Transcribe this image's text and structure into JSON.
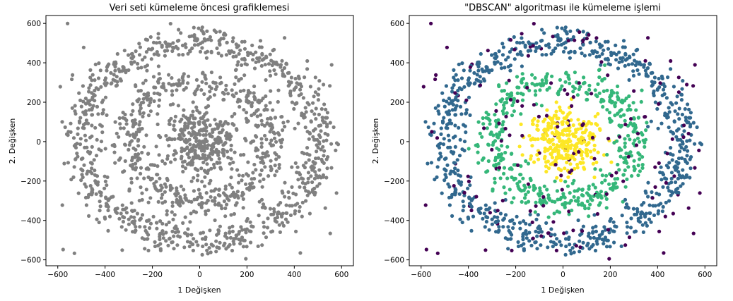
{
  "chart_data": [
    {
      "type": "scatter",
      "title": "Veri seti kümeleme öncesi grafiklemesi",
      "xlabel": "1 Değişken",
      "ylabel": "2. Değişken",
      "xlim": [
        -650,
        650
      ],
      "ylim": [
        -630,
        640
      ],
      "xticks": [
        -600,
        -400,
        -200,
        0,
        200,
        400,
        600
      ],
      "xtick_labels": [
        "−600",
        "−400",
        "−200",
        "0",
        "200",
        "400",
        "600"
      ],
      "yticks": [
        -600,
        -400,
        -200,
        0,
        200,
        400,
        600
      ],
      "ytick_labels": [
        "−600",
        "−400",
        "−200",
        "0",
        "200",
        "400",
        "600"
      ],
      "grid": false,
      "dataset": {
        "description": "three concentric noisy rings plus uniform background noise",
        "rings": [
          {
            "radius": 100,
            "n": 300
          },
          {
            "radius": 300,
            "n": 500
          },
          {
            "radius": 500,
            "n": 800
          }
        ],
        "noise_points": 110,
        "range": [
          -600,
          600
        ]
      },
      "colors": {
        "all": "#808080"
      }
    },
    {
      "type": "scatter",
      "title": "\"DBSCAN\" algoritması ile kümeleme işlemi",
      "xlabel": "1 Değişken",
      "ylabel": "2. Değişken",
      "xlim": [
        -650,
        650
      ],
      "ylim": [
        -630,
        640
      ],
      "xticks": [
        -600,
        -400,
        -200,
        0,
        200,
        400,
        600
      ],
      "xtick_labels": [
        "−600",
        "−400",
        "−200",
        "0",
        "200",
        "400",
        "600"
      ],
      "yticks": [
        -600,
        -400,
        -200,
        0,
        200,
        400,
        600
      ],
      "ytick_labels": [
        "−600",
        "−400",
        "−200",
        "0",
        "200",
        "400",
        "600"
      ],
      "grid": false,
      "colors": {
        "noise": "#440154",
        "outer_ring": "#31688e",
        "middle_ring": "#35b779",
        "inner_ring": "#fde725"
      }
    }
  ]
}
